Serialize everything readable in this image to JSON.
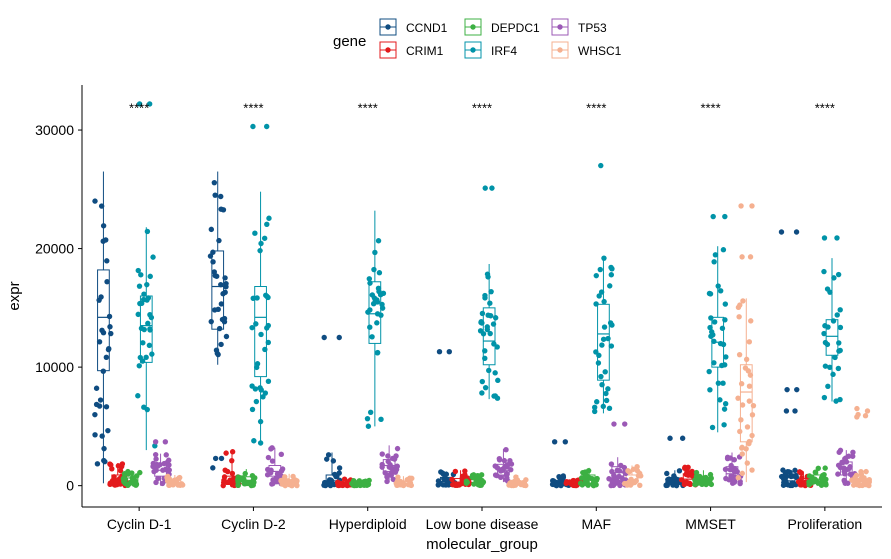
{
  "chart_data": {
    "type": "box-jitter",
    "xlabel": "molecular_group",
    "ylabel": "expr",
    "ylim": [
      -1800,
      33800
    ],
    "yticks": [
      0,
      10000,
      20000,
      30000
    ],
    "ytick_labels": [
      "0",
      "10000",
      "20000",
      "30000"
    ],
    "categories": [
      "Cyclin D-1",
      "Cyclin D-2",
      "Hyperdiploid",
      "Low bone disease",
      "MAF",
      "MMSET",
      "Proliferation"
    ],
    "significance_labels": [
      "****",
      "****",
      "****",
      "****",
      "****",
      "****",
      "****"
    ],
    "significance_y": 32000,
    "legend": {
      "title": "gene",
      "position": "top",
      "entries": [
        "CCND1",
        "CRIM1",
        "DEPDC1",
        "IRF4",
        "TP53",
        "WHSC1"
      ]
    },
    "colors": {
      "CCND1": "#0f4c81",
      "CRIM1": "#e31a1c",
      "DEPDC1": "#3cb043",
      "IRF4": "#0093a8",
      "TP53": "#9b59b6",
      "WHSC1": "#f5b090"
    },
    "series": [
      {
        "name": "CCND1",
        "boxes": [
          {
            "category": "Cyclin D-1",
            "min": 200,
            "q1": 9700,
            "median": 14200,
            "q3": 18200,
            "max": 26500
          },
          {
            "category": "Cyclin D-2",
            "min": 10200,
            "q1": 13200,
            "median": 16800,
            "q3": 19800,
            "max": 26500
          },
          {
            "category": "Hyperdiploid",
            "min": 0,
            "q1": 150,
            "median": 400,
            "q3": 900,
            "max": 2800
          },
          {
            "category": "Low bone disease",
            "min": 0,
            "q1": 150,
            "median": 350,
            "q3": 700,
            "max": 1200
          },
          {
            "category": "MAF",
            "min": 0,
            "q1": 80,
            "median": 200,
            "q3": 450,
            "max": 900
          },
          {
            "category": "MMSET",
            "min": 0,
            "q1": 100,
            "median": 300,
            "q3": 650,
            "max": 1300
          },
          {
            "category": "Proliferation",
            "min": 0,
            "q1": 150,
            "median": 400,
            "q3": 850,
            "max": 1400
          }
        ],
        "outliers": [
          {
            "category": "Cyclin D-2",
            "values": [
              2300,
              2300,
              1500
            ]
          },
          {
            "category": "Hyperdiploid",
            "values": [
              12500,
              12500
            ]
          },
          {
            "category": "Low bone disease",
            "values": [
              11300,
              11300
            ]
          },
          {
            "category": "MAF",
            "values": [
              3700,
              3700
            ]
          },
          {
            "category": "MMSET",
            "values": [
              4000,
              4000
            ]
          },
          {
            "category": "Proliferation",
            "values": [
              21400,
              21400,
              8100,
              8100,
              6300,
              6300
            ]
          }
        ]
      },
      {
        "name": "CRIM1",
        "boxes": [
          {
            "category": "Cyclin D-1",
            "min": 0,
            "q1": 150,
            "median": 450,
            "q3": 900,
            "max": 1900
          },
          {
            "category": "Cyclin D-2",
            "min": 0,
            "q1": 100,
            "median": 300,
            "q3": 800,
            "max": 3000
          },
          {
            "category": "Hyperdiploid",
            "min": 0,
            "q1": 50,
            "median": 120,
            "q3": 250,
            "max": 600
          },
          {
            "category": "Low bone disease",
            "min": 0,
            "q1": 100,
            "median": 300,
            "q3": 600,
            "max": 1300
          },
          {
            "category": "MAF",
            "min": 0,
            "q1": 50,
            "median": 150,
            "q3": 300,
            "max": 600
          },
          {
            "category": "MMSET",
            "min": 0,
            "q1": 200,
            "median": 550,
            "q3": 1000,
            "max": 1700
          },
          {
            "category": "Proliferation",
            "min": 0,
            "q1": 100,
            "median": 300,
            "q3": 600,
            "max": 1200
          }
        ],
        "outliers": []
      },
      {
        "name": "DEPDC1",
        "boxes": [
          {
            "category": "Cyclin D-1",
            "min": 0,
            "q1": 150,
            "median": 350,
            "q3": 650,
            "max": 1200
          },
          {
            "category": "Cyclin D-2",
            "min": 0,
            "q1": 200,
            "median": 450,
            "q3": 750,
            "max": 1400
          },
          {
            "category": "Hyperdiploid",
            "min": 0,
            "q1": 50,
            "median": 150,
            "q3": 300,
            "max": 600
          },
          {
            "category": "Low bone disease",
            "min": 0,
            "q1": 100,
            "median": 250,
            "q3": 500,
            "max": 1000
          },
          {
            "category": "MAF",
            "min": 0,
            "q1": 200,
            "median": 500,
            "q3": 900,
            "max": 1500
          },
          {
            "category": "MMSET",
            "min": 0,
            "q1": 150,
            "median": 400,
            "q3": 700,
            "max": 1300
          },
          {
            "category": "Proliferation",
            "min": 0,
            "q1": 250,
            "median": 550,
            "q3": 900,
            "max": 1500
          }
        ],
        "outliers": []
      },
      {
        "name": "IRF4",
        "boxes": [
          {
            "category": "Cyclin D-1",
            "min": 3000,
            "q1": 10400,
            "median": 13500,
            "q3": 16000,
            "max": 21800
          },
          {
            "category": "Cyclin D-2",
            "min": 3500,
            "q1": 9200,
            "median": 14200,
            "q3": 16800,
            "max": 24800
          },
          {
            "category": "Hyperdiploid",
            "min": 5000,
            "q1": 12000,
            "median": 14500,
            "q3": 17200,
            "max": 23200
          },
          {
            "category": "Low bone disease",
            "min": 7300,
            "q1": 10200,
            "median": 12200,
            "q3": 15000,
            "max": 18700
          },
          {
            "category": "MAF",
            "min": 6100,
            "q1": 8900,
            "median": 12800,
            "q3": 15300,
            "max": 19200
          },
          {
            "category": "MMSET",
            "min": 4500,
            "q1": 10000,
            "median": 12100,
            "q3": 14200,
            "max": 20200
          },
          {
            "category": "Proliferation",
            "min": 7100,
            "q1": 11000,
            "median": 12600,
            "q3": 14000,
            "max": 19200
          }
        ],
        "outliers": [
          {
            "category": "Cyclin D-1",
            "values": [
              32200,
              32200
            ]
          },
          {
            "category": "Cyclin D-2",
            "values": [
              30300,
              30300
            ]
          },
          {
            "category": "Low bone disease",
            "values": [
              25100,
              25100
            ]
          },
          {
            "category": "MAF",
            "values": [
              27000
            ]
          },
          {
            "category": "MMSET",
            "values": [
              22700,
              22700
            ]
          },
          {
            "category": "Proliferation",
            "values": [
              20900,
              20900
            ]
          }
        ]
      },
      {
        "name": "TP53",
        "boxes": [
          {
            "category": "Cyclin D-1",
            "min": 0,
            "q1": 800,
            "median": 1300,
            "q3": 1800,
            "max": 2700
          },
          {
            "category": "Cyclin D-2",
            "min": 100,
            "q1": 800,
            "median": 1200,
            "q3": 1700,
            "max": 3200
          },
          {
            "category": "Hyperdiploid",
            "min": 300,
            "q1": 1200,
            "median": 1700,
            "q3": 2200,
            "max": 3400
          },
          {
            "category": "Low bone disease",
            "min": 300,
            "q1": 900,
            "median": 1300,
            "q3": 1800,
            "max": 3100
          },
          {
            "category": "MAF",
            "min": 0,
            "q1": 600,
            "median": 1100,
            "q3": 1600,
            "max": 2400
          },
          {
            "category": "MMSET",
            "min": 0,
            "q1": 600,
            "median": 1000,
            "q3": 1600,
            "max": 2800
          },
          {
            "category": "Proliferation",
            "min": 200,
            "q1": 900,
            "median": 1400,
            "q3": 2000,
            "max": 3000
          }
        ],
        "outliers": [
          {
            "category": "Cyclin D-1",
            "values": [
              3700,
              3700
            ]
          },
          {
            "category": "MAF",
            "values": [
              5200,
              5200
            ]
          }
        ]
      },
      {
        "name": "WHSC1",
        "boxes": [
          {
            "category": "Cyclin D-1",
            "min": 0,
            "q1": 100,
            "median": 250,
            "q3": 450,
            "max": 900
          },
          {
            "category": "Cyclin D-2",
            "min": 0,
            "q1": 100,
            "median": 250,
            "q3": 500,
            "max": 1000
          },
          {
            "category": "Hyperdiploid",
            "min": 0,
            "q1": 80,
            "median": 200,
            "q3": 400,
            "max": 800
          },
          {
            "category": "Low bone disease",
            "min": 0,
            "q1": 80,
            "median": 200,
            "q3": 400,
            "max": 900
          },
          {
            "category": "MAF",
            "min": 0,
            "q1": 250,
            "median": 500,
            "q3": 900,
            "max": 1700
          },
          {
            "category": "MMSET",
            "min": 300,
            "q1": 3700,
            "median": 7900,
            "q3": 10200,
            "max": 15800
          },
          {
            "category": "Proliferation",
            "min": 0,
            "q1": 100,
            "median": 300,
            "q3": 600,
            "max": 1200
          }
        ],
        "outliers": [
          {
            "category": "MMSET",
            "values": [
              23600,
              23600,
              19300,
              19300
            ]
          },
          {
            "category": "Proliferation",
            "values": [
              6500,
              6300,
              6000,
              5900,
              5800
            ]
          }
        ]
      }
    ]
  }
}
